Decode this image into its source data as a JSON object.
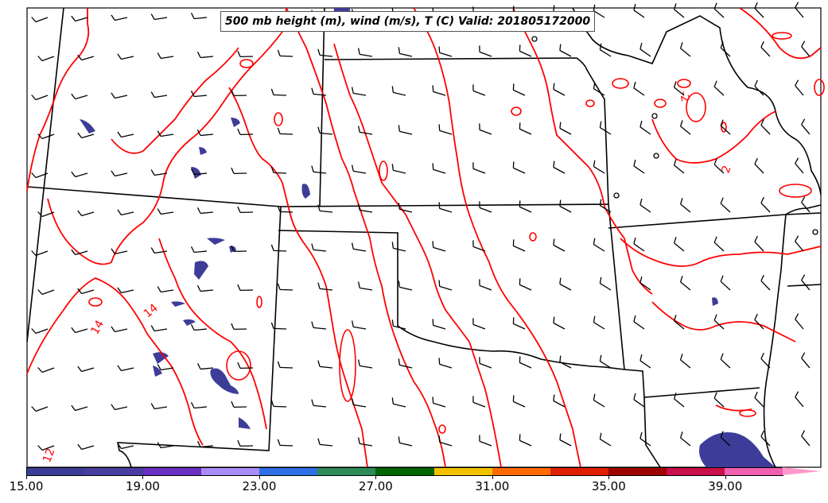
{
  "title": "500 mb height (m), wind (m/s), T (C) Valid: 201805172000",
  "contour_labels": [
    "14",
    "14",
    "12",
    "-2",
    "2"
  ],
  "colorbar": {
    "ticks": [
      "15.00",
      "19.00",
      "23.00",
      "27.00",
      "31.00",
      "35.00",
      "39.00"
    ],
    "colors": [
      "#3d3d99",
      "#4a3fa1",
      "#6a2fc2",
      "#a98cf7",
      "#2e6fe6",
      "#2e8b57",
      "#006400",
      "#f2c200",
      "#ff6a00",
      "#e02000",
      "#a00000",
      "#c8104a",
      "#f060b0",
      "#ff99cc"
    ]
  },
  "colors": {
    "temperature_contour": "#ff0000",
    "boundaries": "#000000",
    "shading": "#3d3d99"
  }
}
